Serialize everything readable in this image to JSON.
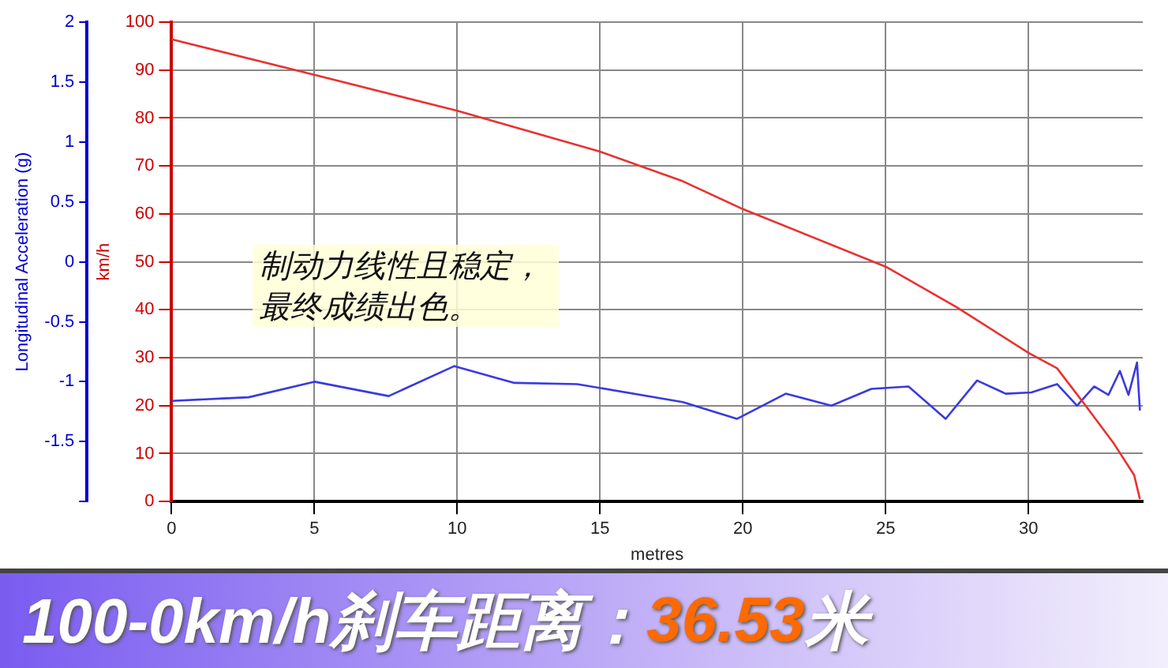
{
  "chart_data": {
    "type": "line",
    "title": "100-0km/h刹车距离：36.53米",
    "xlabel": "metres",
    "ylabel": "km/h",
    "y2label": "Longitudinal Acceleration (g)",
    "annotations": [
      "制动力线性且稳定，最终成绩出色。"
    ],
    "xlim": [
      0,
      34
    ],
    "xticks": [
      0,
      5,
      10,
      15,
      20,
      25,
      30
    ],
    "ylim": [
      0,
      100
    ],
    "yticks": [
      0,
      10,
      20,
      30,
      40,
      50,
      60,
      70,
      80,
      90,
      100
    ],
    "y2lim": [
      -2,
      2
    ],
    "y2ticks": [
      {
        "value": -2,
        "label": null
      },
      -1.5,
      -1,
      -0.5,
      0,
      0.5,
      1,
      1.5,
      2
    ],
    "grid": true,
    "legend": false,
    "marker": "none",
    "line_style": "solid",
    "series": [
      {
        "color": "#e8322f",
        "x": [
          0,
          5,
          10,
          15,
          17.9,
          20,
          25,
          27.5,
          30,
          31,
          32,
          33,
          33.7,
          33.9
        ],
        "values": [
          96.4,
          89,
          81.5,
          73,
          66.8,
          61,
          49,
          40.5,
          31,
          27.8,
          20,
          12,
          5.5,
          0.5
        ]
      },
      {
        "color": "#3a3ae0",
        "axis": "y2",
        "x": [
          0,
          1.8,
          2.7,
          5,
          7.6,
          9.9,
          12,
          14.2,
          17.9,
          19.8,
          21.5,
          23.1,
          24.5,
          25.8,
          27.1,
          28.2,
          29.2,
          30.1,
          31,
          31.7,
          32.3,
          32.8,
          33.2,
          33.5,
          33.8,
          33.9
        ],
        "values": [
          -1.16,
          -1.14,
          -1.13,
          -1,
          -1.12,
          -0.87,
          -1.01,
          -1.02,
          -1.17,
          -1.31,
          -1.1,
          -1.2,
          -1.06,
          -1.04,
          -1.31,
          -0.99,
          -1.1,
          -1.09,
          -1.02,
          -1.2,
          -1.04,
          -1.11,
          -0.91,
          -1.11,
          -0.84,
          -1.24
        ]
      }
    ]
  }
}
